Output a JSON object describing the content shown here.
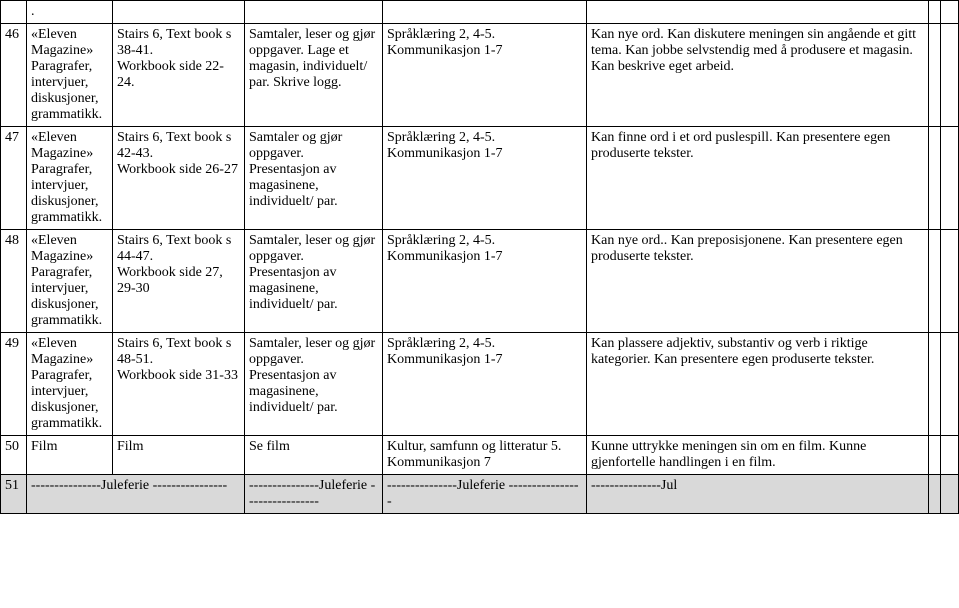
{
  "rows": [
    {
      "num": "",
      "a": ".",
      "b": "",
      "c": "",
      "d": "",
      "e": "",
      "f": "",
      "g": ""
    },
    {
      "num": "46",
      "a": "«Eleven Magazine» Paragrafer, intervjuer, diskusjoner, grammatikk.",
      "b": "Stairs 6, Text book s 38-41.\nWorkbook side 22-24.",
      "c": "Samtaler, leser og gjør oppgaver. Lage et magasin, individuelt/ par. Skrive logg.",
      "d": "Språklæring 2, 4-5.\nKommunikasjon 1-7",
      "e": "Kan nye ord. Kan diskutere meningen sin angående et gitt tema. Kan jobbe selvstendig med å produsere et magasin. Kan beskrive eget arbeid.",
      "f": "",
      "g": ""
    },
    {
      "num": "47",
      "a": "«Eleven Magazine» Paragrafer, intervjuer, diskusjoner, grammatikk.",
      "b": "Stairs 6, Text book s 42-43.\nWorkbook side 26-27",
      "c": "Samtaler og gjør oppgaver. Presentasjon av magasinene, individuelt/ par.",
      "d": "Språklæring 2, 4-5.\nKommunikasjon 1-7",
      "e": "Kan finne ord i et ord puslespill. Kan presentere egen produserte tekster.",
      "f": "",
      "g": ""
    },
    {
      "num": "48",
      "a": "«Eleven Magazine» Paragrafer, intervjuer, diskusjoner, grammatikk.",
      "b": "Stairs 6, Text book s 44-47.\nWorkbook side 27, 29-30",
      "c": "Samtaler, leser og gjør oppgaver. Presentasjon av magasinene, individuelt/ par.",
      "d": "Språklæring 2, 4-5.\nKommunikasjon 1-7",
      "e": "Kan nye ord.. Kan preposisjonene. Kan presentere egen produserte tekster.",
      "f": "",
      "g": ""
    },
    {
      "num": "49",
      "a": "«Eleven Magazine» Paragrafer, intervjuer, diskusjoner, grammatikk.",
      "b": "Stairs 6, Text book s 48-51.\nWorkbook side 31-33",
      "c": "Samtaler, leser og gjør oppgaver. Presentasjon av magasinene, individuelt/ par.",
      "d": "Språklæring 2, 4-5.\nKommunikasjon 1-7",
      "e": "Kan plassere adjektiv, substantiv og verb i riktige kategorier. Kan presentere egen produserte tekster.",
      "f": "",
      "g": ""
    },
    {
      "num": "50",
      "a": "Film",
      "b": "Film",
      "c": "Se film",
      "d": "Kultur, samfunn og litteratur 5. Kommunikasjon 7",
      "e": "Kunne uttrykke meningen sin om en film. Kunne gjenfortelle handlingen i en film.",
      "f": "",
      "g": ""
    },
    {
      "num": "51",
      "a": "---------------Juleferie ----------------",
      "b": "",
      "c": "---------------Juleferie ----------------",
      "d": "---------------Juleferie ----------------",
      "e": "---------------Jul",
      "f": "",
      "g": "",
      "shaded": true
    }
  ]
}
